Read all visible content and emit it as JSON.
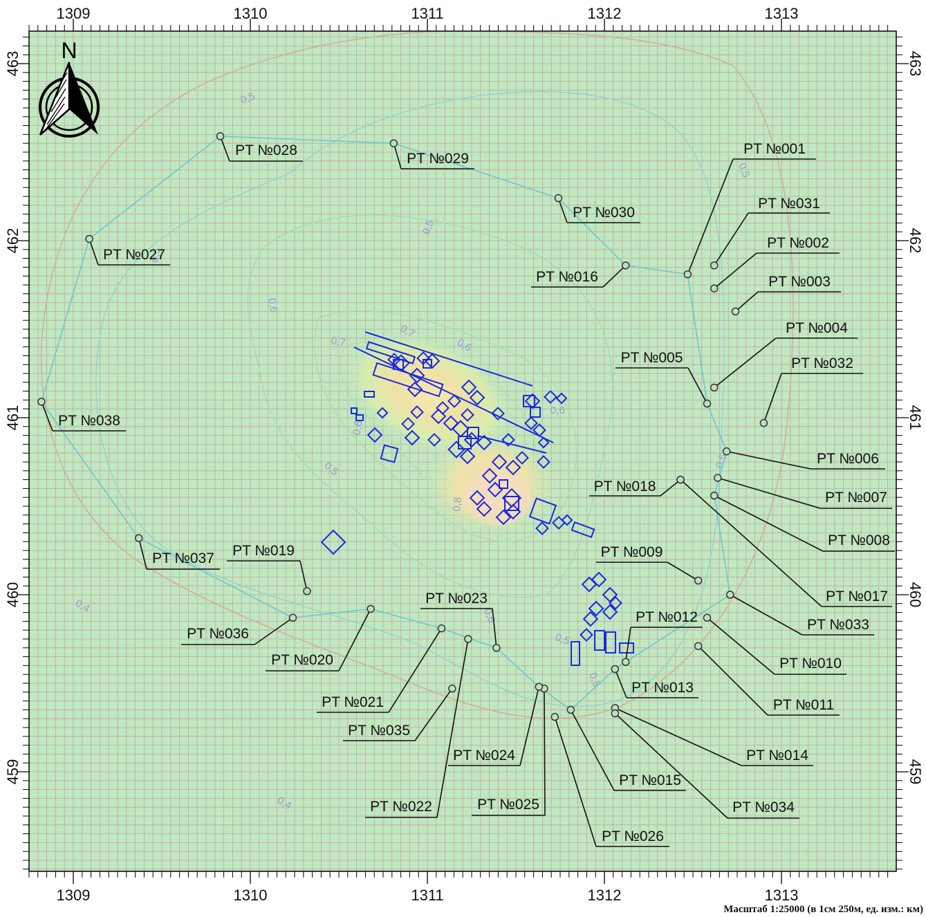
{
  "map": {
    "colors": {
      "background": "#bfe9bf",
      "grid": "#c8a0a8",
      "grid_major": "#b98f98",
      "contour_low": "#7fcfd0",
      "contour_outer": "#d8b09a",
      "hotspot_core": "#f3e6a0",
      "hotspot_mid": "#dcecb0",
      "source": "#1a28e0",
      "label_line": "#111111"
    },
    "x_ticks": [
      "1309",
      "1310",
      "1311",
      "1312",
      "1313"
    ],
    "y_ticks": [
      "463",
      "462",
      "461",
      "460",
      "459"
    ],
    "north_label": "N",
    "scale_text": "Масштаб 1:25000 (в 1см 250м, ед. изм.: км)",
    "contour_labels": [
      "0,5",
      "0,5",
      "0,5",
      "0,6",
      "0,7",
      "0,6",
      "0,5",
      "0,6",
      "0,8",
      "0,7",
      "0,6",
      "0,5",
      "0,6",
      "0,5",
      "0,4",
      "0,4",
      "0,5",
      "0,5"
    ],
    "points": [
      {
        "id": "PT №001",
        "x": 1312.47,
        "y": 461.81
      },
      {
        "id": "PT №031",
        "x": 1312.62,
        "y": 461.86
      },
      {
        "id": "PT №002",
        "x": 1312.62,
        "y": 461.73
      },
      {
        "id": "PT №003",
        "x": 1312.74,
        "y": 461.6
      },
      {
        "id": "PT №004",
        "x": 1312.62,
        "y": 461.17
      },
      {
        "id": "PT №005",
        "x": 1312.58,
        "y": 461.08
      },
      {
        "id": "PT №032",
        "x": 1312.9,
        "y": 460.97
      },
      {
        "id": "PT №006",
        "x": 1312.69,
        "y": 460.81
      },
      {
        "id": "PT №007",
        "x": 1312.64,
        "y": 460.66
      },
      {
        "id": "PT №008",
        "x": 1312.62,
        "y": 460.56
      },
      {
        "id": "PT №018",
        "x": 1312.43,
        "y": 460.65
      },
      {
        "id": "PT №017",
        "x": 1312.43,
        "y": 460.65
      },
      {
        "id": "PT №009",
        "x": 1312.53,
        "y": 460.08
      },
      {
        "id": "PT №033",
        "x": 1312.71,
        "y": 460.0
      },
      {
        "id": "PT №010",
        "x": 1312.58,
        "y": 459.87
      },
      {
        "id": "PT №011",
        "x": 1312.53,
        "y": 459.71
      },
      {
        "id": "PT №012",
        "x": 1312.12,
        "y": 459.62
      },
      {
        "id": "PT №013",
        "x": 1312.06,
        "y": 459.58
      },
      {
        "id": "PT №014",
        "x": 1312.06,
        "y": 459.36
      },
      {
        "id": "PT №034",
        "x": 1312.06,
        "y": 459.33
      },
      {
        "id": "PT №015",
        "x": 1311.81,
        "y": 459.35
      },
      {
        "id": "PT №026",
        "x": 1311.72,
        "y": 459.31
      },
      {
        "id": "PT №025",
        "x": 1311.66,
        "y": 459.47
      },
      {
        "id": "PT №024",
        "x": 1311.63,
        "y": 459.48
      },
      {
        "id": "PT №023",
        "x": 1311.39,
        "y": 459.7
      },
      {
        "id": "PT №022",
        "x": 1311.23,
        "y": 459.75
      },
      {
        "id": "PT №021",
        "x": 1311.08,
        "y": 459.81
      },
      {
        "id": "PT №035",
        "x": 1311.14,
        "y": 459.47
      },
      {
        "id": "PT №020",
        "x": 1310.68,
        "y": 459.92
      },
      {
        "id": "PT №019",
        "x": 1310.32,
        "y": 460.02
      },
      {
        "id": "PT №036",
        "x": 1310.24,
        "y": 459.87
      },
      {
        "id": "PT №037",
        "x": 1309.37,
        "y": 460.32
      },
      {
        "id": "PT №038",
        "x": 1308.82,
        "y": 461.09
      },
      {
        "id": "PT №027",
        "x": 1309.09,
        "y": 462.01
      },
      {
        "id": "PT №028",
        "x": 1309.83,
        "y": 462.59
      },
      {
        "id": "PT №029",
        "x": 1310.81,
        "y": 462.55
      },
      {
        "id": "PT №030",
        "x": 1311.74,
        "y": 462.24
      },
      {
        "id": "PT №016",
        "x": 1312.12,
        "y": 461.86
      }
    ]
  }
}
